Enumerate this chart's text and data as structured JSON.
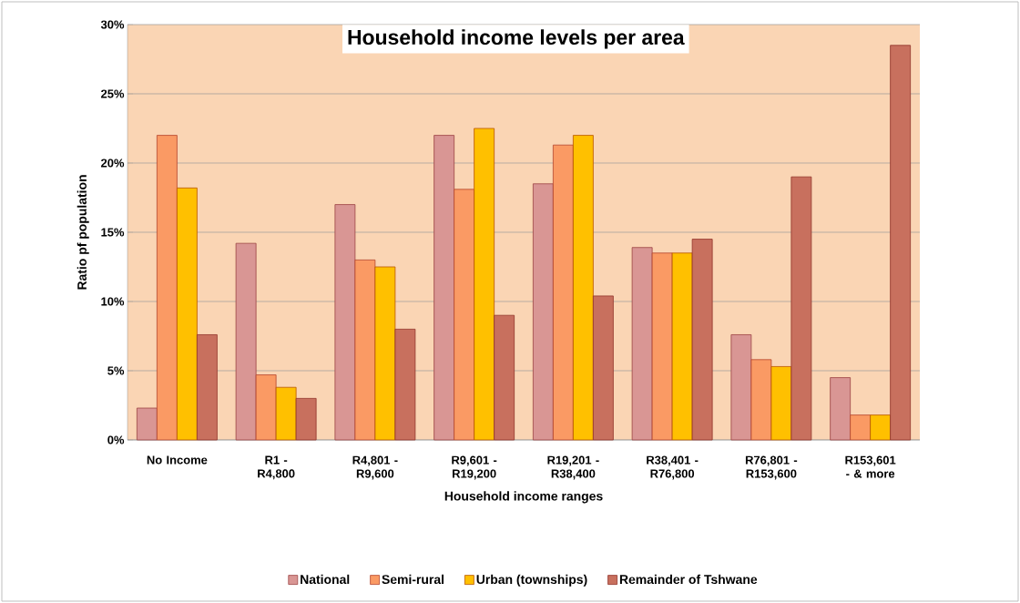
{
  "chart_data": {
    "type": "bar",
    "title": "Household income levels per area",
    "xlabel": "Household income ranges",
    "ylabel": "Ratio pf population",
    "categories": [
      "No Income",
      "R1 - R4,800",
      "R4,801 - R9,600",
      "R9,601 - R19,200",
      "R19,201 - R38,400",
      "R38,401 - R76,800",
      "R76,801 - R153,600",
      "R153,601 - & more"
    ],
    "series": [
      {
        "name": "National",
        "color": "#d99694",
        "values": [
          2.3,
          14.2,
          17.0,
          22.0,
          18.5,
          13.9,
          7.6,
          4.5
        ]
      },
      {
        "name": "Semi-rural",
        "color": "#fa9a64",
        "values": [
          22.0,
          4.7,
          13.0,
          18.1,
          21.3,
          13.5,
          5.8,
          1.8
        ]
      },
      {
        "name": "Urban (townships)",
        "color": "#ffc000",
        "values": [
          18.2,
          3.8,
          12.5,
          22.5,
          22.0,
          13.5,
          5.3,
          1.8
        ]
      },
      {
        "name": "Remainder of Tshwane",
        "color": "#c8705e",
        "values": [
          7.6,
          3.0,
          8.0,
          9.0,
          10.4,
          14.5,
          19.0,
          28.5
        ]
      }
    ],
    "ylim": [
      0,
      30
    ],
    "yticks": [
      {
        "value": 0,
        "label": "0%"
      },
      {
        "value": 5,
        "label": "5%"
      },
      {
        "value": 10,
        "label": "10%"
      },
      {
        "value": 15,
        "label": "15%"
      },
      {
        "value": 20,
        "label": "20%"
      },
      {
        "value": 25,
        "label": "25%"
      },
      {
        "value": 30,
        "label": "30%"
      }
    ],
    "grid": "y",
    "legend": "bottom"
  }
}
